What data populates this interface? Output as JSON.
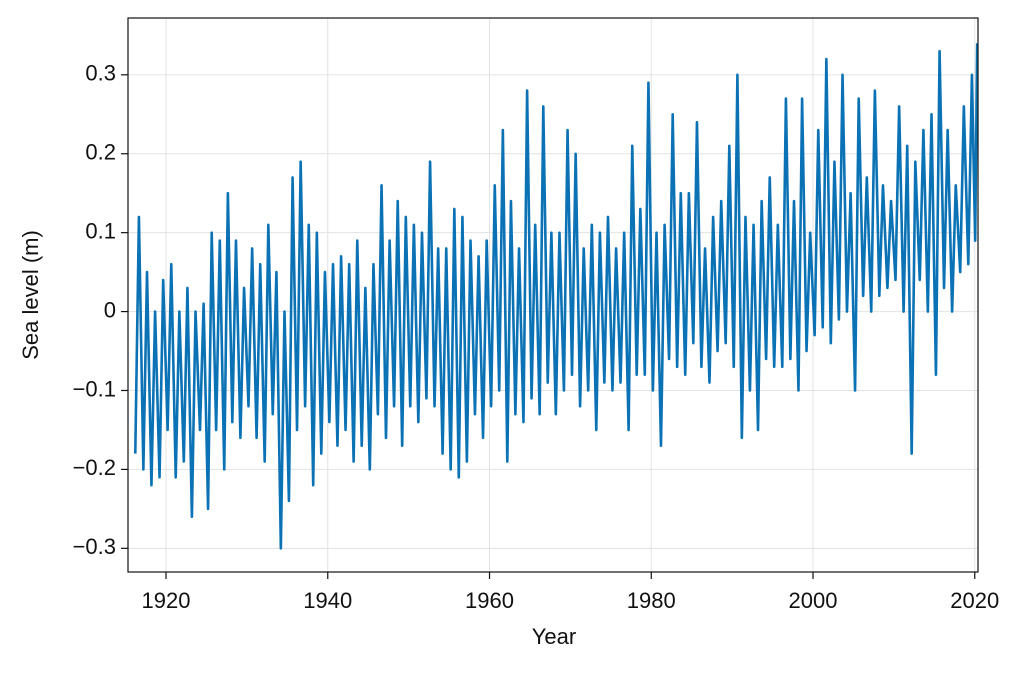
{
  "chart_data": {
    "type": "line",
    "xlabel": "Year",
    "ylabel": "Sea level (m)",
    "xlim": [
      1915.3,
      2020.4
    ],
    "ylim": [
      -0.33,
      0.372
    ],
    "xticks": [
      1920,
      1940,
      1960,
      1980,
      2000,
      2020
    ],
    "yticks": [
      {
        "value": -0.3,
        "label": "−0.3"
      },
      {
        "value": -0.2,
        "label": "−0.2"
      },
      {
        "value": -0.1,
        "label": "−0.1"
      },
      0,
      0.1,
      0.2,
      0.3
    ],
    "grid": true,
    "series": [
      {
        "color": "#0b72b5",
        "x": [
          1916.2,
          1916.65,
          1917.2,
          1917.65,
          1918.2,
          1918.65,
          1919.2,
          1919.65,
          1920.2,
          1920.65,
          1921.2,
          1921.65,
          1922.2,
          1922.65,
          1923.2,
          1923.65,
          1924.2,
          1924.65,
          1925.2,
          1925.65,
          1926.2,
          1926.65,
          1927.2,
          1927.65,
          1928.2,
          1928.65,
          1929.2,
          1929.65,
          1930.2,
          1930.65,
          1931.2,
          1931.65,
          1932.2,
          1932.65,
          1933.2,
          1933.65,
          1934.2,
          1934.65,
          1935.2,
          1935.65,
          1936.2,
          1936.65,
          1937.2,
          1937.65,
          1938.2,
          1938.65,
          1939.2,
          1939.65,
          1940.2,
          1940.65,
          1941.2,
          1941.65,
          1942.2,
          1942.65,
          1943.2,
          1943.65,
          1944.2,
          1944.65,
          1945.2,
          1945.65,
          1946.2,
          1946.65,
          1947.2,
          1947.65,
          1948.2,
          1948.65,
          1949.2,
          1949.65,
          1950.2,
          1950.65,
          1951.2,
          1951.65,
          1952.2,
          1952.65,
          1953.2,
          1953.65,
          1954.2,
          1954.65,
          1955.2,
          1955.65,
          1956.2,
          1956.65,
          1957.2,
          1957.65,
          1958.2,
          1958.65,
          1959.2,
          1959.65,
          1960.2,
          1960.65,
          1961.2,
          1961.65,
          1962.2,
          1962.65,
          1963.2,
          1963.65,
          1964.2,
          1964.65,
          1965.2,
          1965.65,
          1966.2,
          1966.65,
          1967.2,
          1967.65,
          1968.2,
          1968.65,
          1969.2,
          1969.65,
          1970.2,
          1970.65,
          1971.2,
          1971.65,
          1972.2,
          1972.65,
          1973.2,
          1973.65,
          1974.2,
          1974.65,
          1975.2,
          1975.65,
          1976.2,
          1976.65,
          1977.2,
          1977.65,
          1978.2,
          1978.65,
          1979.2,
          1979.65,
          1980.2,
          1980.65,
          1981.2,
          1981.65,
          1982.2,
          1982.65,
          1983.2,
          1983.65,
          1984.2,
          1984.65,
          1985.2,
          1985.65,
          1986.2,
          1986.65,
          1987.2,
          1987.65,
          1988.2,
          1988.65,
          1989.2,
          1989.65,
          1990.2,
          1990.65,
          1991.2,
          1991.65,
          1992.2,
          1992.65,
          1993.2,
          1993.65,
          1994.2,
          1994.65,
          1995.2,
          1995.65,
          1996.2,
          1996.65,
          1997.2,
          1997.65,
          1998.2,
          1998.65,
          1999.2,
          1999.65,
          2000.2,
          2000.65,
          2001.2,
          2001.65,
          2002.2,
          2002.65,
          2003.2,
          2003.65,
          2004.2,
          2004.65,
          2005.2,
          2005.65,
          2006.2,
          2006.65,
          2007.2,
          2007.65,
          2008.2,
          2008.65,
          2009.2,
          2009.65,
          2010.2,
          2010.65,
          2011.2,
          2011.65,
          2012.2,
          2012.65,
          2013.2,
          2013.65,
          2014.2,
          2014.65,
          2015.2,
          2015.65,
          2016.2,
          2016.65,
          2017.2,
          2017.65,
          2018.2,
          2018.65,
          2019.2,
          2019.65,
          2020.05,
          2020.3
        ],
        "values": [
          -0.18,
          0.12,
          -0.2,
          0.05,
          -0.22,
          0,
          -0.21,
          0.04,
          -0.15,
          0.06,
          -0.21,
          0,
          -0.19,
          0.03,
          -0.26,
          0,
          -0.15,
          0.01,
          -0.25,
          0.1,
          -0.15,
          0.09,
          -0.2,
          0.15,
          -0.14,
          0.09,
          -0.16,
          0.03,
          -0.12,
          0.08,
          -0.16,
          0.06,
          -0.19,
          0.11,
          -0.13,
          0.05,
          -0.3,
          0,
          -0.24,
          0.17,
          -0.15,
          0.19,
          -0.12,
          0.11,
          -0.22,
          0.1,
          -0.18,
          0.05,
          -0.14,
          0.06,
          -0.17,
          0.07,
          -0.15,
          0.06,
          -0.19,
          0.09,
          -0.17,
          0.03,
          -0.2,
          0.06,
          -0.13,
          0.16,
          -0.16,
          0.09,
          -0.12,
          0.14,
          -0.17,
          0.12,
          -0.12,
          0.11,
          -0.14,
          0.1,
          -0.11,
          0.19,
          -0.12,
          0.08,
          -0.18,
          0.08,
          -0.2,
          0.13,
          -0.21,
          0.12,
          -0.19,
          0.09,
          -0.13,
          0.07,
          -0.16,
          0.09,
          -0.12,
          0.16,
          -0.1,
          0.23,
          -0.19,
          0.14,
          -0.13,
          0.08,
          -0.14,
          0.28,
          -0.11,
          0.11,
          -0.13,
          0.26,
          -0.09,
          0.1,
          -0.13,
          0.1,
          -0.1,
          0.23,
          -0.08,
          0.2,
          -0.12,
          0.08,
          -0.1,
          0.11,
          -0.15,
          0.1,
          -0.09,
          0.12,
          -0.1,
          0.08,
          -0.09,
          0.1,
          -0.15,
          0.21,
          -0.08,
          0.13,
          -0.08,
          0.29,
          -0.1,
          0.1,
          -0.17,
          0.11,
          -0.06,
          0.25,
          -0.07,
          0.15,
          -0.08,
          0.15,
          -0.04,
          0.24,
          -0.07,
          0.08,
          -0.09,
          0.12,
          -0.05,
          0.14,
          -0.04,
          0.21,
          -0.07,
          0.3,
          -0.16,
          0.12,
          -0.1,
          0.11,
          -0.15,
          0.14,
          -0.06,
          0.17,
          -0.07,
          0.11,
          -0.07,
          0.27,
          -0.06,
          0.14,
          -0.1,
          0.27,
          -0.05,
          0.1,
          -0.03,
          0.23,
          -0.02,
          0.32,
          -0.04,
          0.19,
          -0.01,
          0.3,
          0,
          0.15,
          -0.1,
          0.27,
          0.02,
          0.17,
          0,
          0.28,
          0.02,
          0.16,
          0.03,
          0.14,
          0.04,
          0.26,
          0,
          0.21,
          -0.18,
          0.19,
          0.04,
          0.23,
          0,
          0.25,
          -0.08,
          0.33,
          0.03,
          0.23,
          0,
          0.16,
          0.05,
          0.26,
          0.06,
          0.3,
          0.09,
          0.34
        ]
      }
    ]
  }
}
